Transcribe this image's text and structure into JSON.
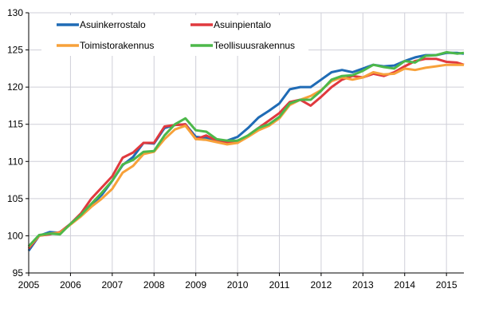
{
  "chart_data": {
    "type": "line",
    "title": "",
    "xlabel": "",
    "ylabel": "",
    "xlim": [
      "2005-01",
      "2015-06"
    ],
    "ylim": [
      95,
      130
    ],
    "yticks": [
      "95",
      "100",
      "105",
      "110",
      "115",
      "120",
      "125",
      "130"
    ],
    "xticks": [
      "2005",
      "2006",
      "2007",
      "2008",
      "2009",
      "2010",
      "2011",
      "2012",
      "2013",
      "2014",
      "2015"
    ],
    "grid": true,
    "legend_position": "top-left",
    "x": [
      "2005-01",
      "2005-04",
      "2005-07",
      "2005-10",
      "2006-01",
      "2006-04",
      "2006-07",
      "2006-10",
      "2007-01",
      "2007-04",
      "2007-07",
      "2007-10",
      "2008-01",
      "2008-04",
      "2008-07",
      "2008-10",
      "2009-01",
      "2009-04",
      "2009-07",
      "2009-10",
      "2010-01",
      "2010-04",
      "2010-07",
      "2010-10",
      "2011-01",
      "2011-04",
      "2011-07",
      "2011-10",
      "2012-01",
      "2012-04",
      "2012-07",
      "2012-10",
      "2013-01",
      "2013-04",
      "2013-07",
      "2013-10",
      "2014-01",
      "2014-04",
      "2014-07",
      "2014-10",
      "2015-01",
      "2015-04",
      "2015-06"
    ],
    "series": [
      {
        "name": "Asuinkerrostalo",
        "color": "#1f6bb5",
        "values": [
          98.0,
          100.0,
          100.5,
          100.4,
          101.6,
          102.8,
          104.1,
          105.5,
          107.4,
          109.5,
          110.6,
          112.5,
          112.4,
          114.5,
          114.9,
          115.0,
          113.3,
          113.2,
          112.8,
          112.8,
          113.3,
          114.5,
          115.9,
          116.8,
          117.8,
          119.7,
          120.0,
          120.0,
          121.0,
          122.0,
          122.3,
          122.0,
          122.5,
          123.0,
          122.8,
          122.9,
          123.5,
          124.0,
          124.3,
          124.3,
          124.6,
          124.6,
          124.5
        ]
      },
      {
        "name": "Asuinpientalo",
        "color": "#e0393e",
        "values": [
          98.3,
          100.0,
          100.2,
          100.5,
          101.6,
          103.0,
          105.0,
          106.5,
          108.0,
          110.5,
          111.2,
          112.5,
          112.5,
          114.7,
          114.9,
          115.0,
          113.0,
          113.5,
          112.8,
          112.5,
          112.5,
          113.5,
          114.5,
          115.5,
          116.5,
          118.0,
          118.3,
          117.5,
          118.7,
          120.0,
          121.0,
          121.5,
          121.3,
          121.8,
          121.5,
          122.0,
          122.8,
          123.5,
          123.8,
          123.8,
          123.4,
          123.3,
          123.0
        ]
      },
      {
        "name": "Toimistorakennus",
        "color": "#f7a13a",
        "values": [
          98.5,
          100.0,
          100.3,
          100.4,
          101.5,
          102.6,
          103.9,
          105.0,
          106.3,
          108.5,
          109.4,
          111.0,
          111.3,
          113.0,
          114.3,
          114.8,
          113.0,
          112.9,
          112.6,
          112.3,
          112.5,
          113.3,
          114.2,
          114.8,
          115.8,
          117.6,
          118.3,
          118.8,
          119.6,
          120.8,
          121.3,
          121.0,
          121.3,
          122.0,
          121.7,
          121.8,
          122.5,
          122.3,
          122.6,
          122.8,
          123.0,
          123.0,
          123.0
        ]
      },
      {
        "name": "Teollisuusrakennus",
        "color": "#4db84a",
        "values": [
          98.6,
          100.1,
          100.3,
          100.2,
          101.6,
          102.8,
          104.3,
          105.8,
          107.4,
          109.6,
          110.2,
          111.3,
          111.4,
          113.5,
          115.0,
          115.8,
          114.2,
          114.0,
          113.0,
          112.8,
          112.8,
          113.5,
          114.5,
          115.0,
          116.0,
          117.8,
          118.3,
          118.3,
          119.5,
          121.0,
          121.5,
          121.6,
          122.2,
          123.0,
          122.7,
          122.5,
          123.5,
          123.3,
          124.2,
          124.3,
          124.7,
          124.5,
          124.6
        ]
      }
    ]
  }
}
